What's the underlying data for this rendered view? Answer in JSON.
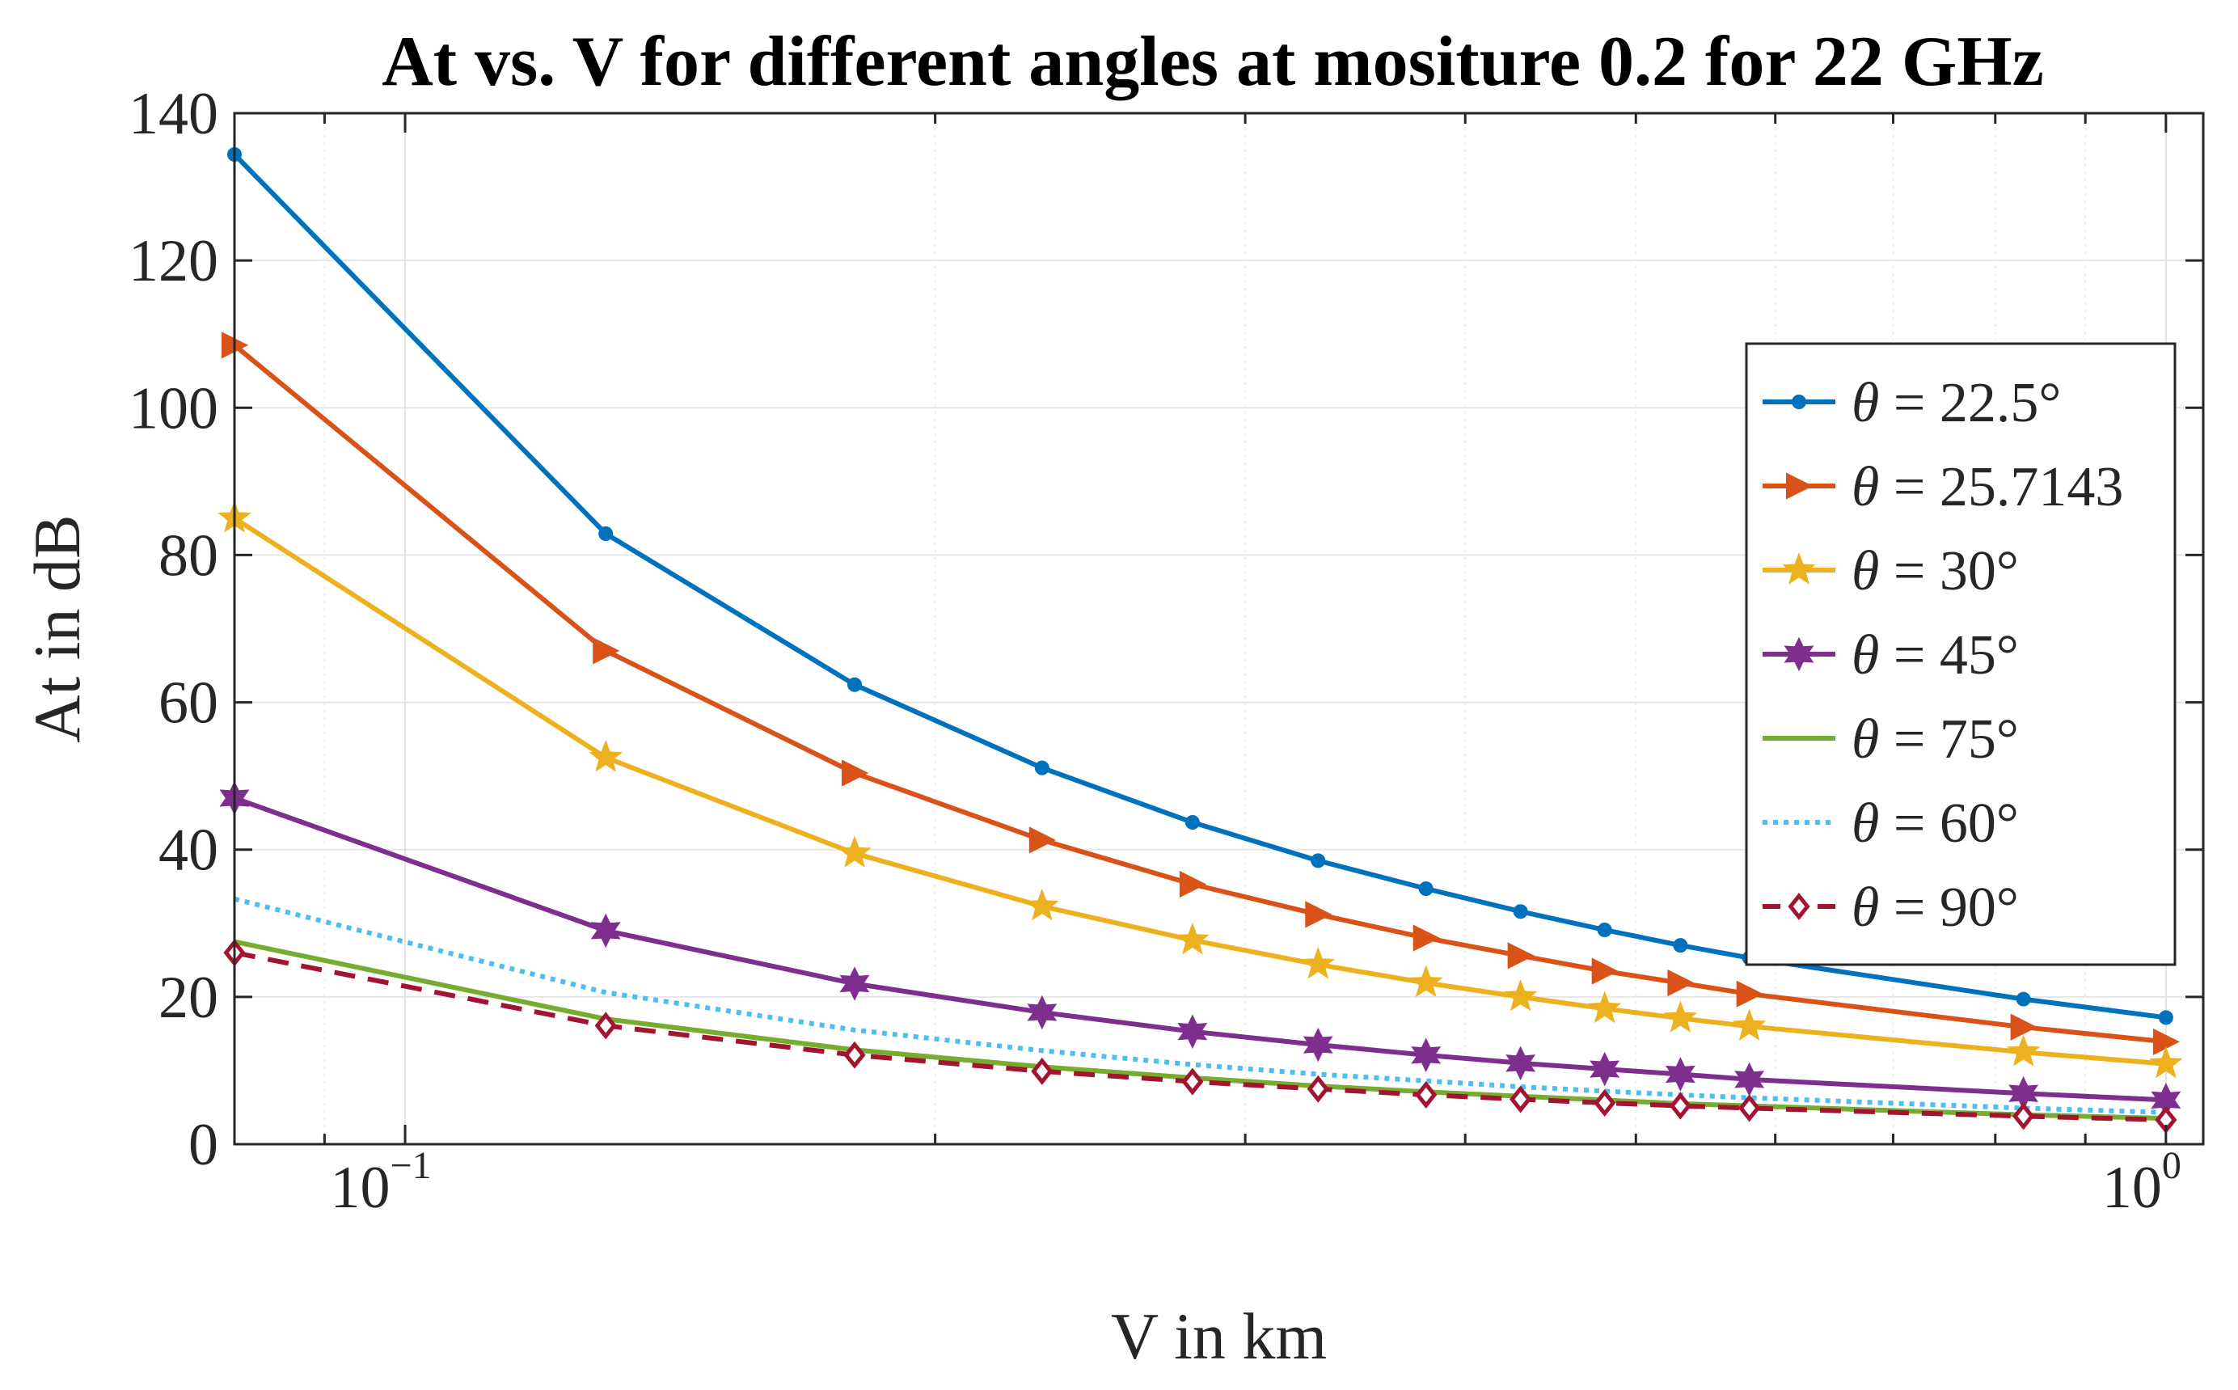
{
  "chart_data": {
    "type": "line",
    "title": "At vs. V for different angles at mositure 0.2 for 22 GHz",
    "xlabel": "V in km",
    "ylabel": "At in dB",
    "xscale": "log",
    "xlim": [
      0.08,
      1.05
    ],
    "ylim": [
      0,
      140
    ],
    "yticks": [
      0,
      20,
      40,
      60,
      80,
      100,
      120,
      140
    ],
    "xticks": [
      {
        "value": 0.1,
        "base": "10",
        "exp": "−1"
      },
      {
        "value": 1.0,
        "base": "10",
        "exp": "0"
      }
    ],
    "grid": true,
    "legend_position": "right",
    "x": [
      0.08,
      0.13,
      0.18,
      0.23,
      0.28,
      0.33,
      0.38,
      0.43,
      0.48,
      0.53,
      0.58,
      0.83,
      1.0
    ],
    "series": [
      {
        "name": "θ = 22.5°",
        "prefix": "θ",
        "suffix": " = 22.5°",
        "color": "#0072BD",
        "dash": "",
        "marker": "point",
        "values": [
          134.4,
          82.9,
          62.4,
          51.1,
          43.7,
          38.5,
          34.7,
          31.6,
          29.1,
          27.0,
          25.3,
          19.7,
          17.2
        ]
      },
      {
        "name": "θ = 25.7143",
        "prefix": "θ",
        "suffix": " = 25.7143",
        "color": "#D95319",
        "dash": "",
        "marker": "triangle-right",
        "values": [
          108.5,
          67.0,
          50.4,
          41.3,
          35.3,
          31.2,
          28.0,
          25.6,
          23.5,
          21.9,
          20.4,
          15.9,
          13.9
        ]
      },
      {
        "name": "θ = 30°",
        "prefix": "θ",
        "suffix": " = 30°",
        "color": "#EDB120",
        "dash": "",
        "marker": "star",
        "values": [
          85.0,
          52.5,
          39.5,
          32.3,
          27.7,
          24.4,
          21.9,
          20.0,
          18.4,
          17.1,
          16.0,
          12.5,
          10.9
        ]
      },
      {
        "name": "θ = 45°",
        "prefix": "θ",
        "suffix": " = 45°",
        "color": "#7E2F8E",
        "dash": "",
        "marker": "hexagram",
        "values": [
          47.0,
          29.0,
          21.8,
          17.9,
          15.3,
          13.5,
          12.1,
          11.0,
          10.2,
          9.5,
          8.8,
          6.9,
          6.0
        ]
      },
      {
        "name": "θ = 75°",
        "prefix": "θ",
        "suffix": " = 75°",
        "color": "#77AC30",
        "dash": "",
        "marker": "none",
        "values": [
          27.5,
          17.0,
          12.8,
          10.5,
          9.0,
          7.9,
          7.1,
          6.5,
          6.0,
          5.5,
          5.2,
          4.0,
          3.5
        ]
      },
      {
        "name": "θ = 60°",
        "prefix": "θ",
        "suffix": " = 60°",
        "color": "#4DBEEE",
        "dash": "6 7",
        "marker": "none",
        "values": [
          33.3,
          20.6,
          15.5,
          12.7,
          10.8,
          9.5,
          8.6,
          7.8,
          7.2,
          6.7,
          6.3,
          4.9,
          4.3
        ]
      },
      {
        "name": "θ = 90°",
        "prefix": "θ",
        "suffix": " = 90°",
        "color": "#A2142F",
        "dash": "26 16",
        "marker": "diamond",
        "values": [
          26.0,
          16.1,
          12.1,
          9.9,
          8.5,
          7.5,
          6.7,
          6.1,
          5.6,
          5.2,
          4.9,
          3.8,
          3.3
        ]
      }
    ]
  }
}
